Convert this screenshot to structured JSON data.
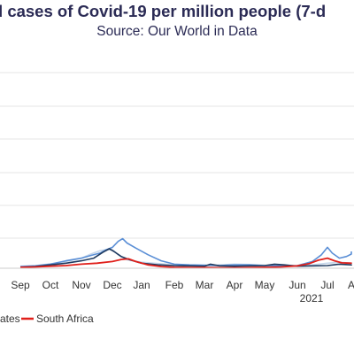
{
  "chart_data": {
    "type": "line",
    "title": "d cases of Covid-19 per million people (7-d",
    "subtitle": "Source: Our World in Data",
    "x_tick_labels": [
      "Sep",
      "Oct",
      "Nov",
      "Dec",
      "Jan",
      "Feb",
      "Mar",
      "Apr",
      "May",
      "Jun",
      "Jul",
      "A"
    ],
    "x_year_label": "2021",
    "grid": true,
    "legend_position": "bottom-left",
    "series": [
      {
        "name": "",
        "color": "#c5d6ea",
        "values": [
          [
            0,
            6
          ],
          [
            0.5,
            8
          ],
          [
            1,
            13
          ],
          [
            1.5,
            20
          ],
          [
            2,
            30
          ],
          [
            2.3,
            42
          ],
          [
            2.6,
            52
          ],
          [
            2.8,
            55
          ],
          [
            3.0,
            55
          ],
          [
            3.2,
            40
          ],
          [
            3.5,
            25
          ],
          [
            4,
            18
          ],
          [
            4.5,
            14
          ],
          [
            5,
            10
          ],
          [
            5.5,
            9
          ],
          [
            6,
            8
          ],
          [
            6.5,
            10
          ],
          [
            7,
            12
          ],
          [
            7.5,
            11
          ],
          [
            8,
            9
          ],
          [
            8.5,
            8
          ],
          [
            9,
            8
          ],
          [
            9.5,
            10
          ],
          [
            10,
            15
          ],
          [
            10.5,
            18
          ],
          [
            11,
            15
          ],
          [
            11.5,
            14
          ]
        ]
      },
      {
        "name": "",
        "color": "#5b8fd6",
        "values": [
          [
            0,
            5
          ],
          [
            0.5,
            7
          ],
          [
            1,
            12
          ],
          [
            1.5,
            22
          ],
          [
            2,
            30
          ],
          [
            2.3,
            38
          ],
          [
            2.6,
            45
          ],
          [
            2.8,
            55
          ],
          [
            3.0,
            62
          ],
          [
            3.2,
            80
          ],
          [
            3.35,
            88
          ],
          [
            3.5,
            75
          ],
          [
            3.8,
            60
          ],
          [
            4.2,
            40
          ],
          [
            4.6,
            22
          ],
          [
            5,
            12
          ],
          [
            5.5,
            10
          ],
          [
            6,
            9
          ],
          [
            6.5,
            8
          ],
          [
            7,
            10
          ],
          [
            7.5,
            10
          ],
          [
            8,
            8
          ],
          [
            8.5,
            7
          ],
          [
            9,
            8
          ],
          [
            9.5,
            20
          ],
          [
            9.8,
            40
          ],
          [
            10.0,
            62
          ],
          [
            10.2,
            45
          ],
          [
            10.5,
            30
          ],
          [
            10.8,
            35
          ],
          [
            11,
            42
          ],
          [
            11.5,
            50
          ]
        ]
      },
      {
        "name": "",
        "color": "#1f3a5f",
        "values": [
          [
            0,
            3
          ],
          [
            0.5,
            5
          ],
          [
            1,
            10
          ],
          [
            1.5,
            15
          ],
          [
            2,
            22
          ],
          [
            2.4,
            30
          ],
          [
            2.7,
            48
          ],
          [
            2.9,
            58
          ],
          [
            3.05,
            50
          ],
          [
            3.3,
            35
          ],
          [
            3.6,
            25
          ],
          [
            4,
            15
          ],
          [
            4.5,
            10
          ],
          [
            5,
            8
          ],
          [
            5.5,
            7
          ],
          [
            6,
            6
          ],
          [
            6.2,
            12
          ],
          [
            6.5,
            7
          ],
          [
            7,
            6
          ],
          [
            7.5,
            7
          ],
          [
            8,
            8
          ],
          [
            8.3,
            12
          ],
          [
            8.6,
            10
          ],
          [
            9,
            6
          ],
          [
            9.5,
            7
          ],
          [
            10,
            8
          ],
          [
            10.5,
            12
          ],
          [
            11,
            10
          ],
          [
            11.5,
            8
          ]
        ]
      },
      {
        "name": "South Africa",
        "color": "#e0201b",
        "values": [
          [
            0,
            3
          ],
          [
            0.5,
            4
          ],
          [
            1,
            6
          ],
          [
            1.5,
            8
          ],
          [
            2,
            12
          ],
          [
            2.5,
            15
          ],
          [
            3,
            20
          ],
          [
            3.3,
            26
          ],
          [
            3.55,
            28
          ],
          [
            3.8,
            20
          ],
          [
            4.2,
            10
          ],
          [
            4.6,
            5
          ],
          [
            5,
            3
          ],
          [
            5.5,
            2
          ],
          [
            6,
            2
          ],
          [
            6.5,
            1.5
          ],
          [
            7,
            1.5
          ],
          [
            7.5,
            2
          ],
          [
            8,
            3
          ],
          [
            8.5,
            4
          ],
          [
            9,
            7
          ],
          [
            9.4,
            14
          ],
          [
            9.7,
            24
          ],
          [
            10.0,
            30
          ],
          [
            10.3,
            22
          ],
          [
            10.6,
            16
          ],
          [
            11,
            15
          ],
          [
            11.5,
            14
          ]
        ]
      }
    ]
  },
  "legend": {
    "cut_label": "ates",
    "south_africa_label": "South Africa"
  }
}
